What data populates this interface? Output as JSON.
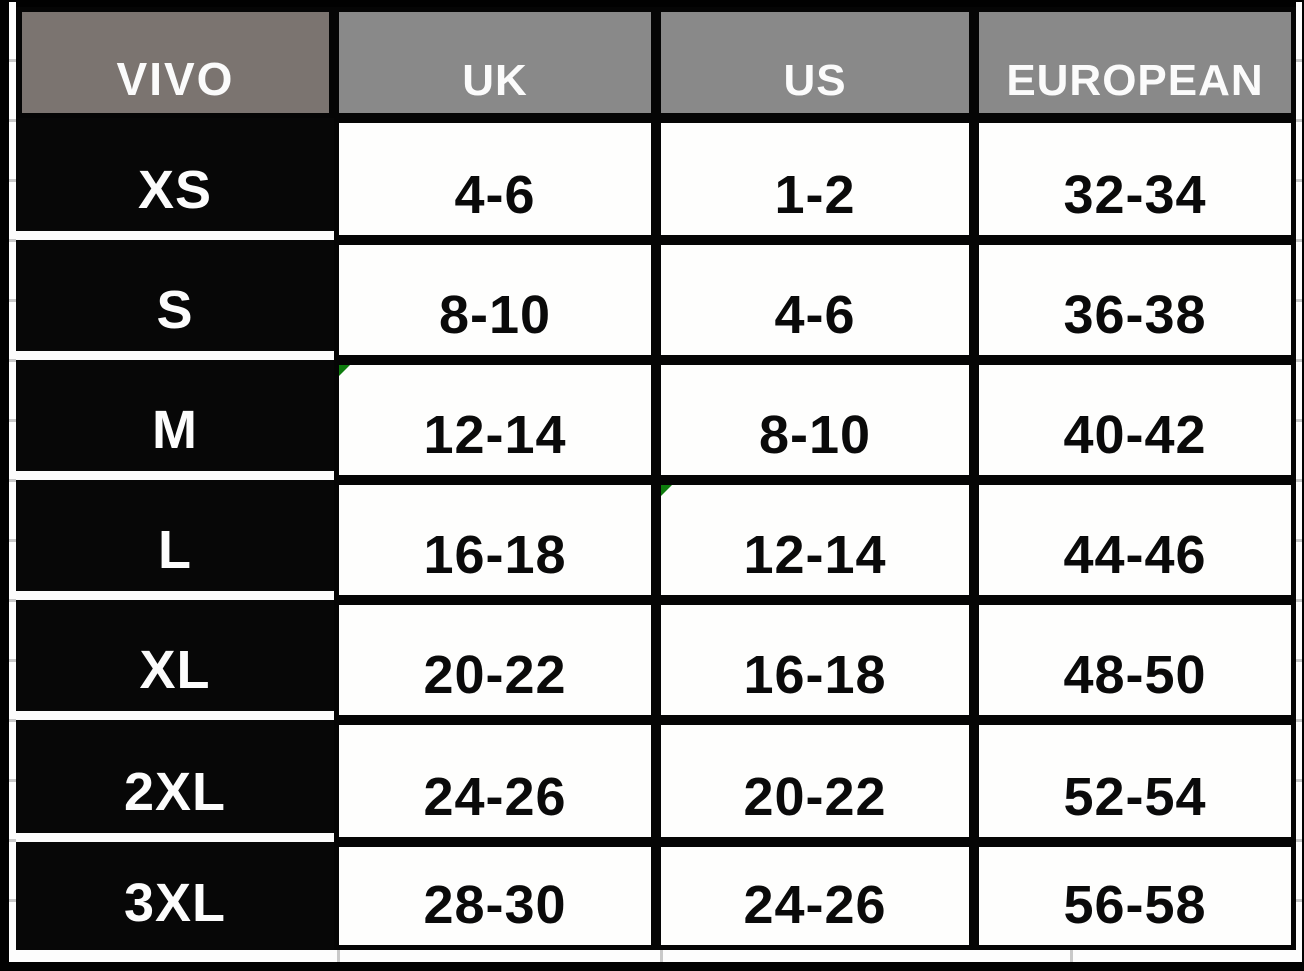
{
  "chart_data": {
    "type": "table",
    "columns": [
      "VIVO",
      "UK",
      "US",
      "EUROPEAN"
    ],
    "rows": [
      [
        "XS",
        "4-6",
        "1-2",
        "32-34"
      ],
      [
        "S",
        "8-10",
        "4-6",
        "36-38"
      ],
      [
        "M",
        "12-14",
        "8-10",
        "40-42"
      ],
      [
        "L",
        "16-18",
        "12-14",
        "44-46"
      ],
      [
        "XL",
        "20-22",
        "16-18",
        "48-50"
      ],
      [
        "2XL",
        "24-26",
        "20-22",
        "52-54"
      ],
      [
        "3XL",
        "28-30",
        "24-26",
        "56-58"
      ]
    ],
    "cell_flags": [
      {
        "row": "M",
        "column": "UK",
        "type": "green-corner-flag"
      },
      {
        "row": "L",
        "column": "US",
        "type": "green-corner-flag"
      }
    ],
    "layout_hints": {
      "header_row_bg": "gray",
      "first_column_bg": "black",
      "value_cells_bg": "white",
      "first_column_row_separator": "white underline"
    }
  },
  "colors": {
    "brand_header_bg": "#7b7470",
    "column_header_bg": "#898989",
    "size_cell_bg": "#070707",
    "value_cell_bg": "#fefefd",
    "separator_white": "#fcfcfc",
    "flag_green": "#0e7c0e",
    "gridline_gray": "#c9c9c9",
    "frame_black": "#010101"
  }
}
